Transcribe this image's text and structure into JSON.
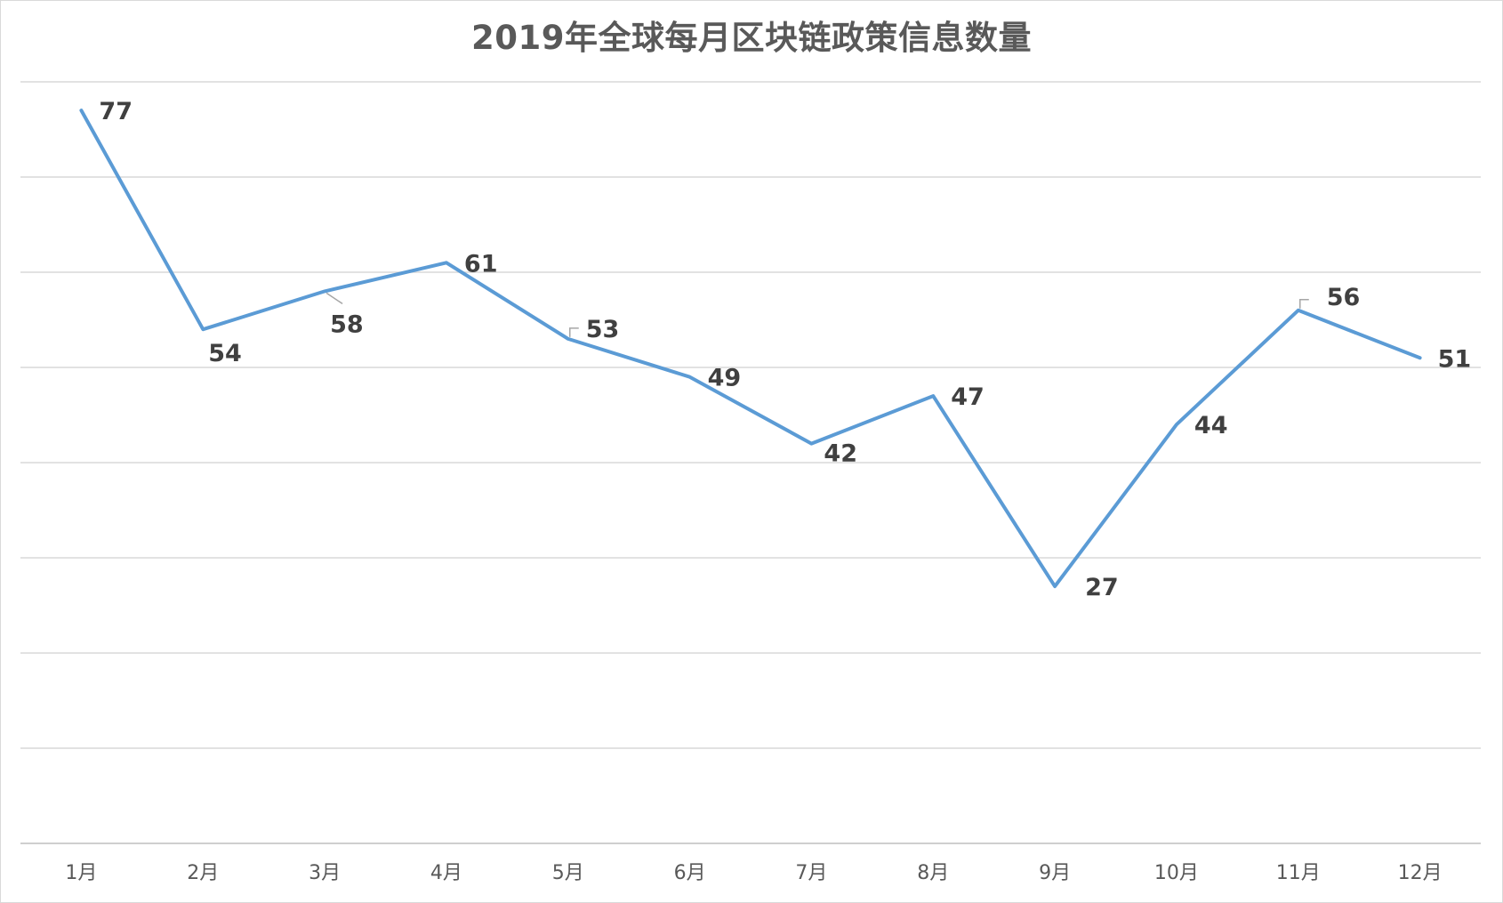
{
  "chart_data": {
    "type": "line",
    "title": "2019年全球每月区块链政策信息数量",
    "categories": [
      "1月",
      "2月",
      "3月",
      "4月",
      "5月",
      "6月",
      "7月",
      "8月",
      "9月",
      "10月",
      "11月",
      "12月"
    ],
    "series": [
      {
        "values": [
          77,
          54,
          58,
          61,
          53,
          49,
          42,
          47,
          27,
          44,
          56,
          51
        ],
        "color": "#5b9bd5"
      }
    ],
    "ylim": [
      0,
      80
    ],
    "grid": true,
    "y_tick_labels_visible": false,
    "legend": "none"
  }
}
